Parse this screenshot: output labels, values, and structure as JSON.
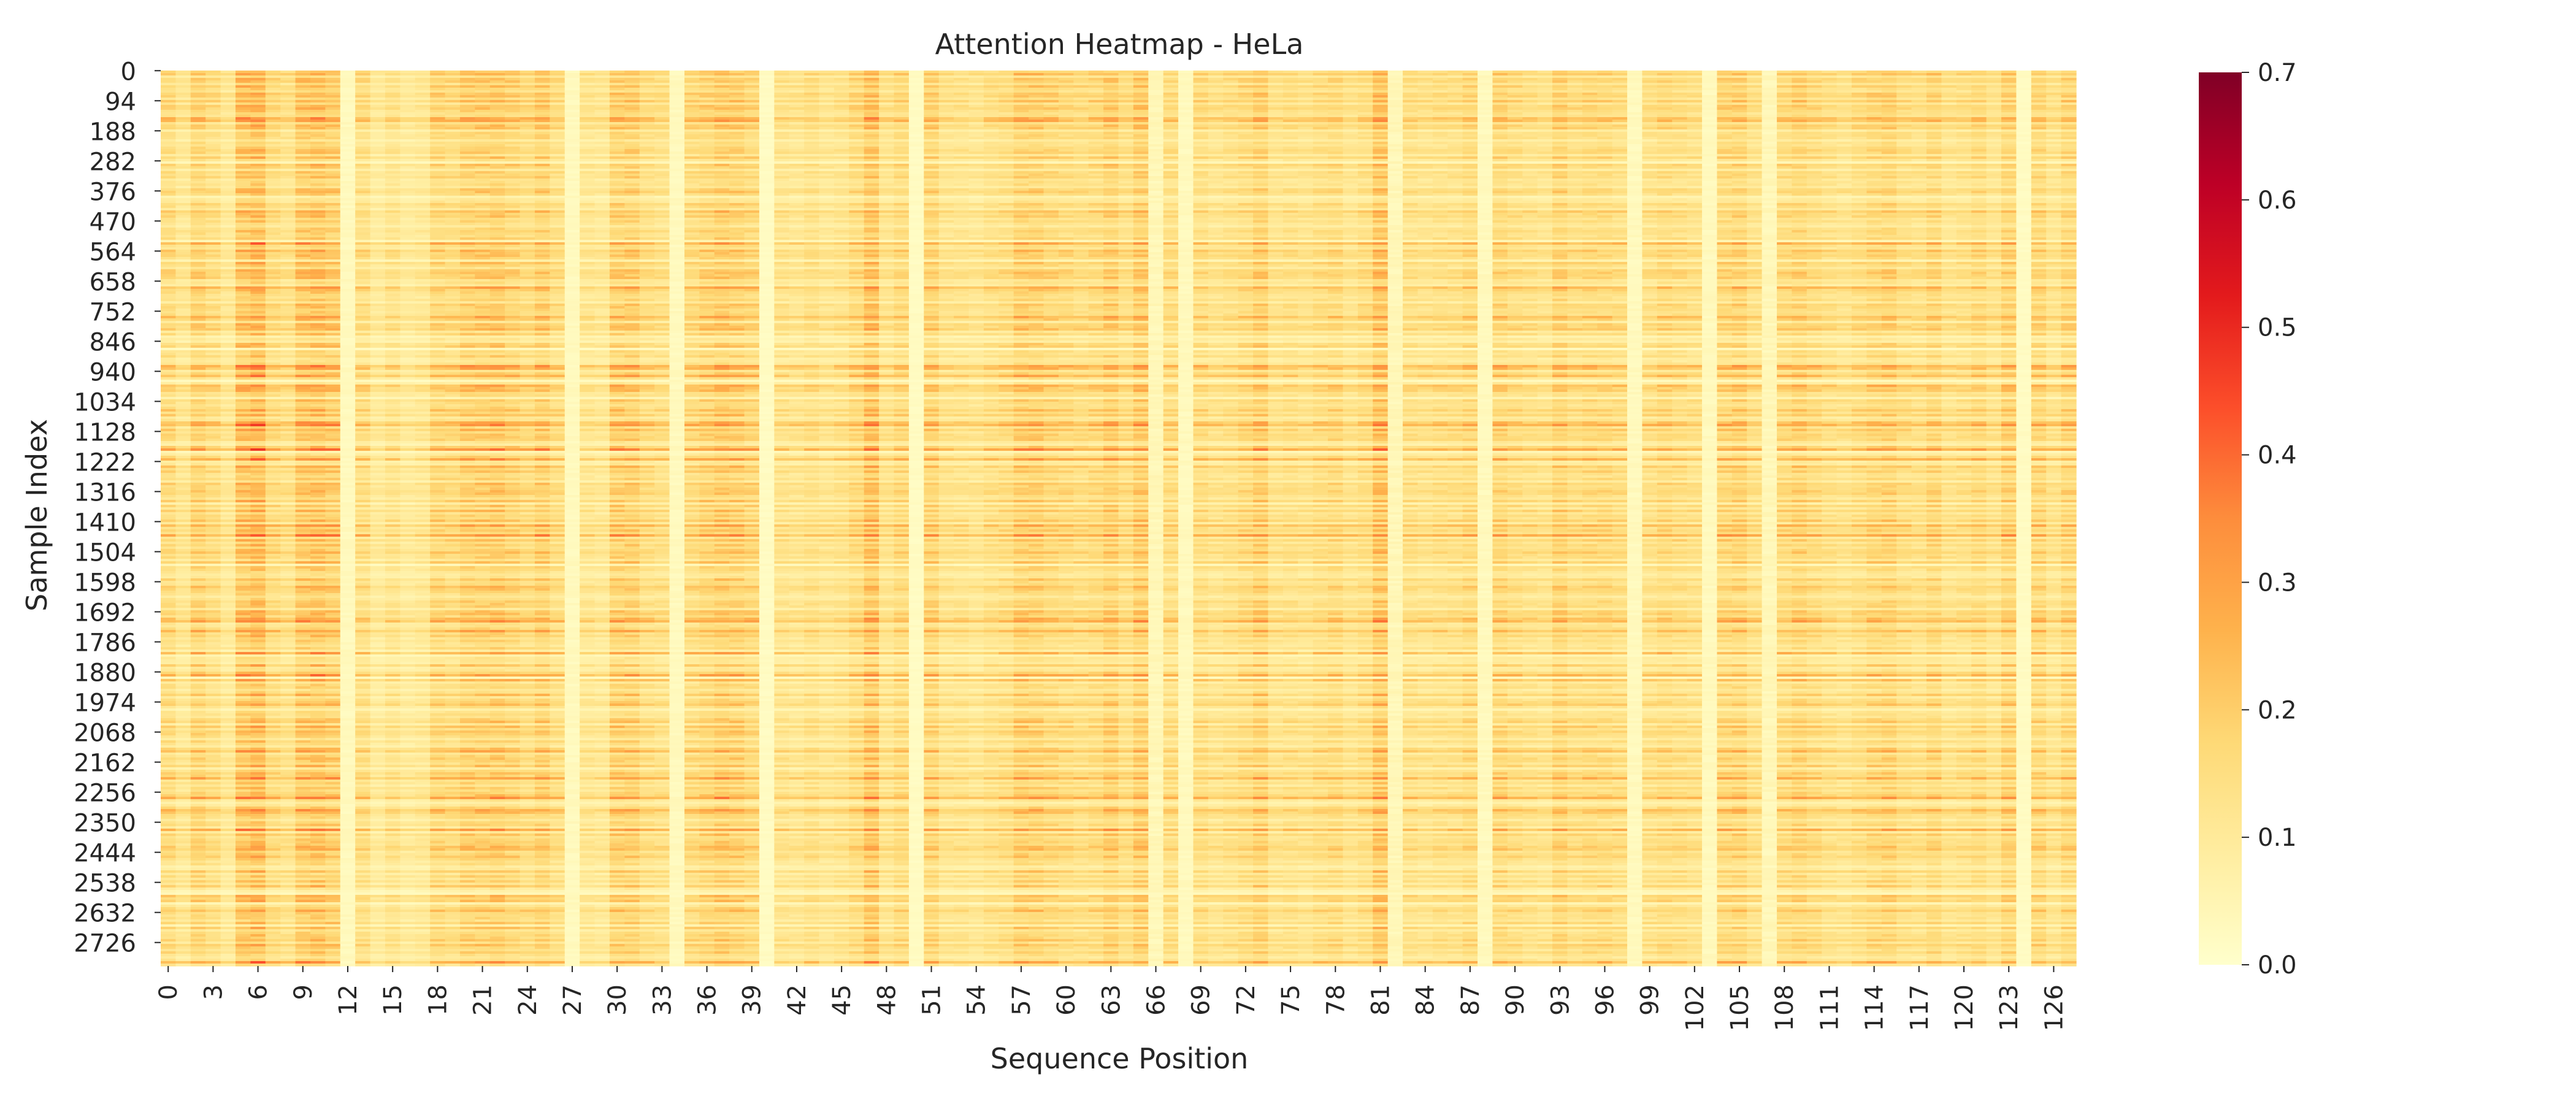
{
  "chart_data": {
    "type": "heatmap",
    "title": "Attention Heatmap - HeLa",
    "xlabel": "Sequence Position",
    "ylabel": "Sample Index",
    "x_tick_labels": [
      "0",
      "3",
      "6",
      "9",
      "12",
      "15",
      "18",
      "21",
      "24",
      "27",
      "30",
      "33",
      "36",
      "39",
      "42",
      "45",
      "48",
      "51",
      "54",
      "57",
      "60",
      "63",
      "66",
      "69",
      "72",
      "75",
      "78",
      "81",
      "84",
      "87",
      "90",
      "93",
      "96",
      "99",
      "102",
      "105",
      "108",
      "111",
      "114",
      "117",
      "120",
      "123",
      "126"
    ],
    "y_tick_labels": [
      "0",
      "94",
      "188",
      "282",
      "376",
      "470",
      "564",
      "658",
      "752",
      "846",
      "940",
      "1034",
      "1128",
      "1222",
      "1316",
      "1410",
      "1504",
      "1598",
      "1692",
      "1786",
      "1880",
      "1974",
      "2068",
      "2162",
      "2256",
      "2350",
      "2444",
      "2538",
      "2632",
      "2726"
    ],
    "n_columns": 128,
    "n_rows": 2800,
    "colorbar": {
      "min": 0.0,
      "max": 0.7,
      "ticks": [
        "0.0",
        "0.1",
        "0.2",
        "0.3",
        "0.4",
        "0.5",
        "0.6",
        "0.7"
      ],
      "colormap": "YlOrRd",
      "stops": [
        "#ffffcc",
        "#ffeda0",
        "#fed976",
        "#feb24c",
        "#fd8d3c",
        "#fc4e2a",
        "#e31a1c",
        "#bd0026",
        "#800026"
      ]
    },
    "column_mean_attention": [
      0.16,
      0.12,
      0.18,
      0.15,
      0.11,
      0.22,
      0.24,
      0.16,
      0.14,
      0.21,
      0.22,
      0.2,
      0.03,
      0.15,
      0.1,
      0.13,
      0.1,
      0.11,
      0.17,
      0.16,
      0.19,
      0.19,
      0.2,
      0.18,
      0.16,
      0.19,
      0.15,
      0.03,
      0.12,
      0.11,
      0.19,
      0.19,
      0.15,
      0.14,
      0.03,
      0.16,
      0.18,
      0.2,
      0.19,
      0.17,
      0.02,
      0.13,
      0.12,
      0.14,
      0.12,
      0.13,
      0.16,
      0.22,
      0.13,
      0.16,
      0.02,
      0.18,
      0.13,
      0.13,
      0.12,
      0.14,
      0.15,
      0.19,
      0.19,
      0.17,
      0.16,
      0.15,
      0.16,
      0.19,
      0.15,
      0.2,
      0.04,
      0.15,
      0.03,
      0.15,
      0.13,
      0.14,
      0.16,
      0.19,
      0.13,
      0.14,
      0.13,
      0.15,
      0.16,
      0.13,
      0.15,
      0.22,
      0.04,
      0.14,
      0.13,
      0.14,
      0.14,
      0.16,
      0.03,
      0.17,
      0.15,
      0.14,
      0.13,
      0.18,
      0.15,
      0.16,
      0.16,
      0.15,
      0.03,
      0.14,
      0.16,
      0.15,
      0.14,
      0.03,
      0.17,
      0.18,
      0.14,
      0.04,
      0.16,
      0.18,
      0.16,
      0.14,
      0.13,
      0.15,
      0.17,
      0.18,
      0.15,
      0.14,
      0.17,
      0.13,
      0.14,
      0.16,
      0.13,
      0.18,
      0.02,
      0.17,
      0.13,
      0.17
    ]
  }
}
